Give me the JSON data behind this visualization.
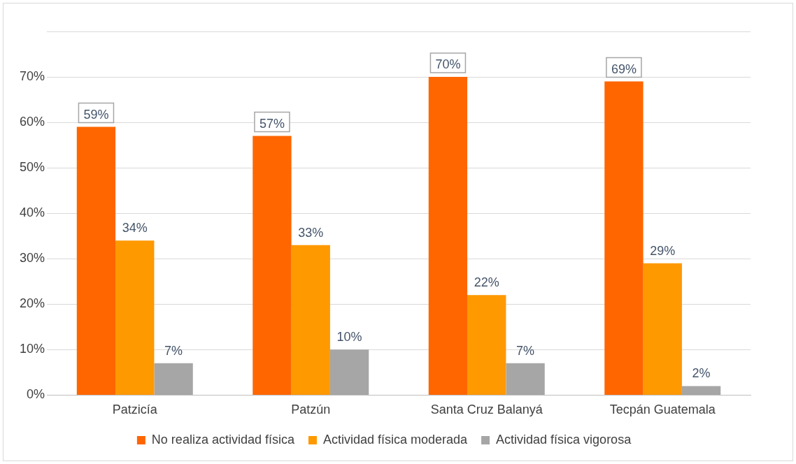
{
  "chart_data": {
    "type": "bar",
    "categories": [
      "Patzicía",
      "Patzún",
      "Santa Cruz Balanyá",
      "Tecpán Guatemala"
    ],
    "series": [
      {
        "name": "No realiza actividad física",
        "color": "#ff6600",
        "values": [
          59,
          57,
          70,
          69
        ]
      },
      {
        "name": "Actividad física moderada",
        "color": "#ff9900",
        "values": [
          34,
          33,
          22,
          29
        ]
      },
      {
        "name": "Actividad física vigorosa",
        "color": "#a6a6a6",
        "values": [
          7,
          10,
          7,
          2
        ]
      }
    ],
    "ylim": [
      0,
      80
    ],
    "yticks": [
      {
        "value": 0,
        "label": "0%"
      },
      {
        "value": 10,
        "label": "10%"
      },
      {
        "value": 20,
        "label": "20%"
      },
      {
        "value": 30,
        "label": "30%"
      },
      {
        "value": 40,
        "label": "40%"
      },
      {
        "value": 50,
        "label": "50%"
      },
      {
        "value": 60,
        "label": "60%"
      },
      {
        "value": 70,
        "label": "70%"
      },
      {
        "value": 80,
        "label": null
      }
    ],
    "value_labels": [
      [
        "59%",
        "57%",
        "70%",
        "69%"
      ],
      [
        "34%",
        "33%",
        "22%",
        "29%"
      ],
      [
        "7%",
        "10%",
        "7%",
        "2%"
      ]
    ],
    "grid": "y",
    "legend": "bottom"
  }
}
